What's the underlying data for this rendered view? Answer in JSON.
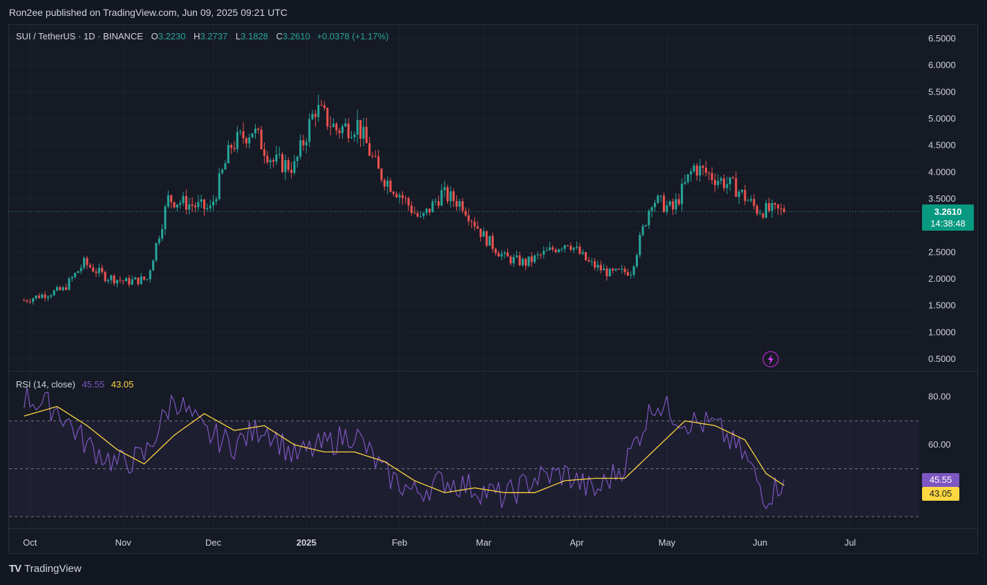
{
  "header": {
    "publisher": "Ron2ee published on TradingView.com, Jun 09, 2025 09:21 UTC"
  },
  "symbol": {
    "title": "SUI / TetherUS · 1D · BINANCE",
    "o_label": "O",
    "o": "3.2230",
    "h_label": "H",
    "h": "3.2737",
    "l_label": "L",
    "l": "3.1828",
    "c_label": "C",
    "c": "3.2610",
    "change": "+0.0378 (+1.17%)"
  },
  "price_tag": {
    "price": "3.2610",
    "countdown": "14:38:48"
  },
  "rsi_legend": {
    "label": "RSI (14, close)",
    "rsi": "45.55",
    "ma": "43.05"
  },
  "footer": {
    "brand": "TradingView",
    "logo": "tradingview-logo-icon"
  },
  "colors": {
    "up": "#26a69a",
    "down": "#ef5350",
    "rsi": "#7e57c2",
    "rsi_ma": "#ffd740",
    "bg": "#161a25"
  },
  "chart_data": [
    {
      "type": "candlestick",
      "title": "SUI / TetherUS · 1D · BINANCE",
      "ylim": [
        0.5,
        6.5
      ],
      "y_ticks": [
        "6.5000",
        "6.0000",
        "5.5000",
        "5.0000",
        "4.5000",
        "4.0000",
        "3.5000",
        "3.0000",
        "2.5000",
        "2.0000",
        "1.5000",
        "1.0000",
        "0.5000"
      ],
      "x_ticks": [
        "Oct",
        "Nov",
        "Dec",
        "2025",
        "Feb",
        "Mar",
        "Apr",
        "May",
        "Jun",
        "Jul"
      ],
      "grid": true,
      "last_price": 3.261,
      "series": [
        {
          "name": "close",
          "x": [
            "2024-09-29",
            "2024-10-05",
            "2024-10-12",
            "2024-10-19",
            "2024-10-26",
            "2024-11-02",
            "2024-11-09",
            "2024-11-16",
            "2024-11-23",
            "2024-11-30",
            "2024-12-07",
            "2024-12-14",
            "2024-12-21",
            "2024-12-28",
            "2025-01-04",
            "2025-01-11",
            "2025-01-18",
            "2025-01-25",
            "2025-02-01",
            "2025-02-08",
            "2025-02-15",
            "2025-02-22",
            "2025-03-01",
            "2025-03-08",
            "2025-03-15",
            "2025-03-22",
            "2025-03-29",
            "2025-04-05",
            "2025-04-12",
            "2025-04-19",
            "2025-04-26",
            "2025-05-03",
            "2025-05-10",
            "2025-05-17",
            "2025-05-24",
            "2025-05-31",
            "2025-06-09"
          ],
          "values": [
            1.6,
            1.7,
            1.8,
            2.3,
            2.05,
            1.95,
            2.0,
            3.5,
            3.4,
            3.3,
            4.5,
            4.8,
            4.2,
            4.1,
            5.2,
            4.8,
            4.9,
            4.0,
            3.6,
            3.1,
            3.6,
            3.4,
            2.8,
            2.4,
            2.3,
            2.5,
            2.7,
            2.3,
            2.1,
            2.15,
            3.5,
            3.3,
            4.1,
            3.9,
            3.7,
            3.3,
            3.26
          ]
        }
      ]
    },
    {
      "type": "line",
      "title": "RSI (14, close)",
      "ylim": [
        30,
        90
      ],
      "y_ticks": [
        "80.00",
        "60.00"
      ],
      "bands": [
        70,
        50,
        30
      ],
      "series": [
        {
          "name": "RSI",
          "x": [
            "2024-09-29",
            "2024-10-10",
            "2024-10-20",
            "2024-10-30",
            "2024-11-08",
            "2024-11-18",
            "2024-11-28",
            "2024-12-08",
            "2024-12-18",
            "2024-12-28",
            "2025-01-07",
            "2025-01-17",
            "2025-01-27",
            "2025-02-06",
            "2025-02-16",
            "2025-02-26",
            "2025-03-08",
            "2025-03-18",
            "2025-03-28",
            "2025-04-07",
            "2025-04-17",
            "2025-04-27",
            "2025-05-07",
            "2025-05-17",
            "2025-05-27",
            "2025-06-03",
            "2025-06-09"
          ],
          "values": [
            80,
            75,
            60,
            52,
            55,
            80,
            65,
            60,
            68,
            55,
            60,
            65,
            48,
            40,
            45,
            42,
            38,
            46,
            48,
            40,
            52,
            78,
            70,
            68,
            55,
            38,
            45.55
          ]
        },
        {
          "name": "RSI-based MA",
          "x": [
            "2024-09-29",
            "2024-10-10",
            "2024-10-20",
            "2024-10-30",
            "2024-11-08",
            "2024-11-18",
            "2024-11-28",
            "2024-12-08",
            "2024-12-18",
            "2024-12-28",
            "2025-01-07",
            "2025-01-17",
            "2025-01-27",
            "2025-02-06",
            "2025-02-16",
            "2025-02-26",
            "2025-03-08",
            "2025-03-18",
            "2025-03-28",
            "2025-04-07",
            "2025-04-17",
            "2025-04-27",
            "2025-05-07",
            "2025-05-17",
            "2025-05-27",
            "2025-06-03",
            "2025-06-09"
          ],
          "values": [
            72,
            76,
            68,
            58,
            52,
            64,
            73,
            66,
            68,
            60,
            57,
            57,
            53,
            45,
            40,
            42,
            40,
            40,
            45,
            46,
            46,
            58,
            70,
            68,
            62,
            48,
            43.05
          ]
        }
      ]
    }
  ]
}
